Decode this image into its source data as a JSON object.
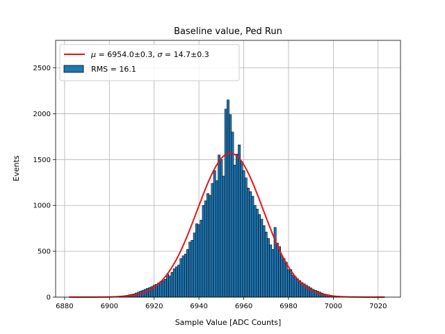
{
  "chart_data": {
    "type": "bar",
    "title": "Baseline value, Ped Run",
    "xlabel": "Sample Value [ADC Counts]",
    "ylabel": "Events",
    "xlim": [
      6876,
      7030
    ],
    "ylim": [
      0,
      2800
    ],
    "xticks": [
      6880,
      6900,
      6920,
      6940,
      6960,
      6980,
      7000,
      7020
    ],
    "yticks": [
      0,
      500,
      1000,
      1500,
      2000,
      2500
    ],
    "grid": true,
    "legend_position": "top-left",
    "histogram": {
      "name": "RMS = 16.1",
      "color": "#1f77b4",
      "edge_color": "#000000",
      "bin_width": 1.0,
      "bins": [
        [
          6902,
          5
        ],
        [
          6903,
          8
        ],
        [
          6904,
          10
        ],
        [
          6905,
          12
        ],
        [
          6906,
          14
        ],
        [
          6907,
          17
        ],
        [
          6908,
          20
        ],
        [
          6909,
          25
        ],
        [
          6910,
          30
        ],
        [
          6911,
          35
        ],
        [
          6912,
          45
        ],
        [
          6913,
          55
        ],
        [
          6914,
          65
        ],
        [
          6915,
          75
        ],
        [
          6916,
          85
        ],
        [
          6917,
          95
        ],
        [
          6918,
          105
        ],
        [
          6919,
          115
        ],
        [
          6920,
          130
        ],
        [
          6921,
          140
        ],
        [
          6922,
          155
        ],
        [
          6923,
          170
        ],
        [
          6924,
          180
        ],
        [
          6925,
          195
        ],
        [
          6926,
          250
        ],
        [
          6927,
          230
        ],
        [
          6928,
          270
        ],
        [
          6929,
          310
        ],
        [
          6930,
          330
        ],
        [
          6931,
          350
        ],
        [
          6932,
          420
        ],
        [
          6933,
          450
        ],
        [
          6934,
          470
        ],
        [
          6935,
          520
        ],
        [
          6936,
          600
        ],
        [
          6937,
          620
        ],
        [
          6938,
          700
        ],
        [
          6939,
          800
        ],
        [
          6940,
          790
        ],
        [
          6941,
          840
        ],
        [
          6942,
          1000
        ],
        [
          6943,
          1050
        ],
        [
          6944,
          1130
        ],
        [
          6945,
          1110
        ],
        [
          6946,
          1240
        ],
        [
          6947,
          1380
        ],
        [
          6948,
          1270
        ],
        [
          6949,
          1550
        ],
        [
          6950,
          1500
        ],
        [
          6951,
          1320
        ],
        [
          6952,
          2050
        ],
        [
          6953,
          2150
        ],
        [
          6954,
          1990
        ],
        [
          6955,
          1800
        ],
        [
          6956,
          1440
        ],
        [
          6957,
          1560
        ],
        [
          6958,
          1660
        ],
        [
          6959,
          1480
        ],
        [
          6960,
          1380
        ],
        [
          6961,
          1300
        ],
        [
          6962,
          1190
        ],
        [
          6963,
          1150
        ],
        [
          6964,
          1100
        ],
        [
          6965,
          1000
        ],
        [
          6966,
          960
        ],
        [
          6967,
          900
        ],
        [
          6968,
          850
        ],
        [
          6969,
          780
        ],
        [
          6970,
          710
        ],
        [
          6971,
          640
        ],
        [
          6972,
          570
        ],
        [
          6973,
          520
        ],
        [
          6974,
          760
        ],
        [
          6975,
          590
        ],
        [
          6976,
          550
        ],
        [
          6977,
          450
        ],
        [
          6978,
          420
        ],
        [
          6979,
          380
        ],
        [
          6980,
          300
        ],
        [
          6981,
          300
        ],
        [
          6982,
          240
        ],
        [
          6983,
          220
        ],
        [
          6984,
          200
        ],
        [
          6985,
          180
        ],
        [
          6986,
          160
        ],
        [
          6987,
          145
        ],
        [
          6988,
          130
        ],
        [
          6989,
          115
        ],
        [
          6990,
          100
        ],
        [
          6991,
          85
        ],
        [
          6992,
          75
        ],
        [
          6993,
          65
        ],
        [
          6994,
          55
        ],
        [
          6995,
          45
        ],
        [
          6996,
          35
        ],
        [
          6997,
          30
        ],
        [
          6998,
          25
        ],
        [
          6999,
          20
        ],
        [
          7000,
          15
        ],
        [
          7001,
          12
        ],
        [
          7002,
          10
        ],
        [
          7003,
          8
        ],
        [
          7004,
          6
        ]
      ]
    },
    "fit": {
      "name": "$\\mu = 6954.0 \\pm 0.3$, $\\sigma = 14.7 \\pm 0.3$",
      "legend_label": {
        "mu_symbol": "μ",
        "mu_text": " = 6954.0±0.3, ",
        "sigma_symbol": "σ",
        "sigma_text": " = 14.7±0.3"
      },
      "type": "gaussian",
      "mu": 6954.0,
      "sigma": 14.7,
      "amplitude": 1570,
      "x_range": [
        6882,
        7023
      ],
      "color": "#ee1111"
    },
    "legend_rms_label": "RMS = 16.1"
  }
}
